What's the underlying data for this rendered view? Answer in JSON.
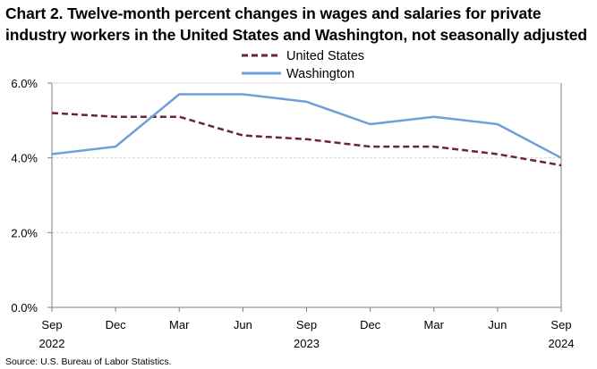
{
  "chart_data": {
    "type": "line",
    "title_lines": [
      "Chart 2. Twelve-month percent changes in wages and salaries for private",
      "industry workers in the United States and Washington, not seasonally adjusted"
    ],
    "categories": [
      "Sep 2022",
      "Dec",
      "Mar",
      "Jun",
      "Sep 2023",
      "Dec",
      "Mar",
      "Jun",
      "Sep 2024"
    ],
    "x_tick_labels": [
      {
        "month": "Sep",
        "year": "2022"
      },
      {
        "month": "Dec",
        "year": ""
      },
      {
        "month": "Mar",
        "year": ""
      },
      {
        "month": "Jun",
        "year": ""
      },
      {
        "month": "Sep",
        "year": "2023"
      },
      {
        "month": "Dec",
        "year": ""
      },
      {
        "month": "Mar",
        "year": ""
      },
      {
        "month": "Jun",
        "year": ""
      },
      {
        "month": "Sep",
        "year": "2024"
      }
    ],
    "series": [
      {
        "name": "United States",
        "color": "#6b2241",
        "style": "dashed",
        "values": [
          5.2,
          5.1,
          5.1,
          4.6,
          4.5,
          4.3,
          4.3,
          4.1,
          3.8
        ]
      },
      {
        "name": "Washington",
        "color": "#6f9fd8",
        "style": "solid",
        "values": [
          4.1,
          4.3,
          5.7,
          5.7,
          5.5,
          4.9,
          5.1,
          4.9,
          4.0
        ]
      }
    ],
    "ylim": [
      0,
      6
    ],
    "y_ticks": [
      0,
      2,
      4,
      6
    ],
    "y_tick_labels": [
      "0.0%",
      "2.0%",
      "4.0%",
      "6.0%"
    ],
    "grid": true,
    "legend_position": "top-center",
    "xlabel": "",
    "ylabel": ""
  },
  "footer": {
    "source": "Source: U.S. Bureau of Labor Statistics."
  }
}
